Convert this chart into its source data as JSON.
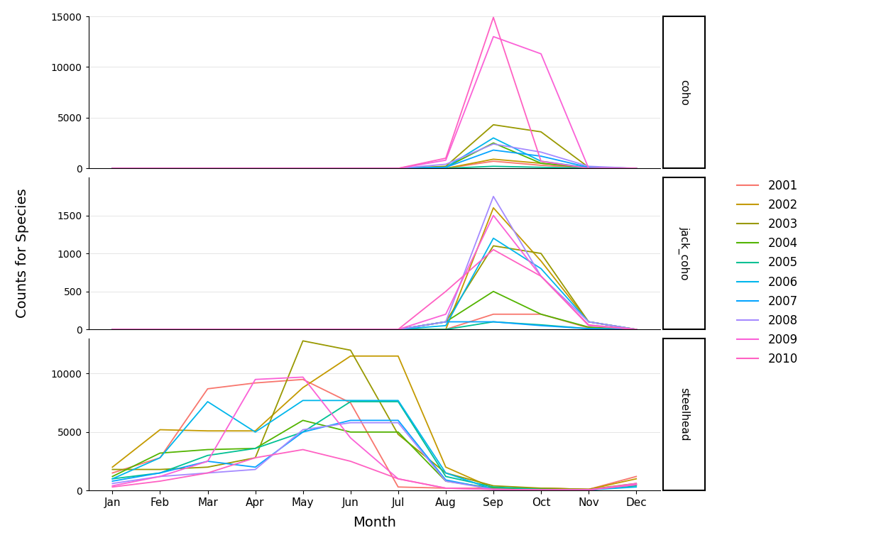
{
  "months": [
    "Jan",
    "Feb",
    "Mar",
    "Apr",
    "May",
    "Jun",
    "Jul",
    "Aug",
    "Sep",
    "Oct",
    "Nov",
    "Dec"
  ],
  "years": [
    "2001",
    "2002",
    "2003",
    "2004",
    "2005",
    "2006",
    "2007",
    "2008",
    "2009",
    "2010"
  ],
  "year_colors": {
    "2001": "#F8766D",
    "2002": "#C49A00",
    "2003": "#999900",
    "2004": "#53B400",
    "2005": "#00C094",
    "2006": "#00B6EB",
    "2007": "#06A4FF",
    "2008": "#A58AFF",
    "2009": "#FB61D7",
    "2010": "#FF61C3"
  },
  "coho": {
    "2001": [
      0,
      0,
      0,
      0,
      0,
      0,
      0,
      0,
      700,
      300,
      50,
      0
    ],
    "2002": [
      0,
      0,
      0,
      0,
      0,
      0,
      0,
      0,
      900,
      500,
      80,
      0
    ],
    "2003": [
      0,
      0,
      0,
      0,
      0,
      0,
      0,
      200,
      4300,
      3600,
      100,
      0
    ],
    "2004": [
      0,
      0,
      0,
      0,
      0,
      0,
      0,
      100,
      2500,
      500,
      50,
      0
    ],
    "2005": [
      0,
      0,
      0,
      0,
      0,
      0,
      0,
      0,
      200,
      100,
      20,
      0
    ],
    "2006": [
      0,
      0,
      0,
      0,
      0,
      0,
      0,
      100,
      3000,
      700,
      60,
      0
    ],
    "2007": [
      0,
      0,
      0,
      0,
      0,
      0,
      0,
      100,
      1800,
      1200,
      100,
      0
    ],
    "2008": [
      0,
      0,
      0,
      0,
      0,
      0,
      0,
      400,
      2400,
      1600,
      200,
      0
    ],
    "2009": [
      0,
      0,
      0,
      0,
      0,
      0,
      0,
      800,
      13000,
      11300,
      0,
      0
    ],
    "2010": [
      0,
      0,
      0,
      0,
      0,
      0,
      0,
      1000,
      14900,
      700,
      0,
      0
    ]
  },
  "jack_coho": {
    "2001": [
      0,
      0,
      0,
      0,
      0,
      0,
      0,
      0,
      200,
      200,
      20,
      0
    ],
    "2002": [
      0,
      0,
      0,
      0,
      0,
      0,
      0,
      0,
      1600,
      900,
      100,
      0
    ],
    "2003": [
      0,
      0,
      0,
      0,
      0,
      0,
      0,
      100,
      1100,
      1000,
      100,
      0
    ],
    "2004": [
      0,
      0,
      0,
      0,
      0,
      0,
      0,
      100,
      500,
      200,
      30,
      0
    ],
    "2005": [
      0,
      0,
      0,
      0,
      0,
      0,
      0,
      0,
      100,
      60,
      10,
      0
    ],
    "2006": [
      0,
      0,
      0,
      0,
      0,
      0,
      0,
      50,
      1200,
      800,
      100,
      0
    ],
    "2007": [
      0,
      0,
      0,
      0,
      0,
      0,
      0,
      100,
      100,
      50,
      10,
      0
    ],
    "2008": [
      0,
      0,
      0,
      0,
      0,
      0,
      0,
      100,
      1750,
      700,
      100,
      0
    ],
    "2009": [
      0,
      0,
      0,
      0,
      0,
      0,
      0,
      200,
      1500,
      700,
      50,
      0
    ],
    "2010": [
      0,
      0,
      0,
      0,
      0,
      0,
      0,
      500,
      1050,
      700,
      60,
      0
    ]
  },
  "steelhead": {
    "2001": [
      1500,
      2800,
      8700,
      9200,
      9500,
      7500,
      300,
      200,
      200,
      200,
      100,
      1200
    ],
    "2002": [
      2000,
      5200,
      5100,
      5100,
      8800,
      11500,
      11500,
      2000,
      200,
      200,
      100,
      1000
    ],
    "2003": [
      1800,
      1800,
      2000,
      2800,
      12800,
      12000,
      4800,
      1500,
      400,
      200,
      100,
      600
    ],
    "2004": [
      1200,
      3200,
      3500,
      3600,
      6000,
      5000,
      5000,
      800,
      200,
      100,
      50,
      500
    ],
    "2005": [
      1000,
      1500,
      3000,
      3600,
      5000,
      7600,
      7600,
      1200,
      300,
      100,
      50,
      400
    ],
    "2006": [
      1000,
      2800,
      7600,
      5000,
      7700,
      7700,
      7700,
      1500,
      100,
      50,
      50,
      300
    ],
    "2007": [
      800,
      1500,
      2500,
      2000,
      5000,
      6000,
      6000,
      900,
      100,
      50,
      50,
      500
    ],
    "2008": [
      600,
      1200,
      1500,
      1800,
      5200,
      5800,
      5800,
      800,
      100,
      50,
      50,
      500
    ],
    "2009": [
      400,
      1200,
      2500,
      9500,
      9700,
      4500,
      1000,
      200,
      100,
      50,
      50,
      600
    ],
    "2010": [
      300,
      800,
      1500,
      2800,
      3500,
      2500,
      1000,
      200,
      100,
      50,
      50,
      500
    ]
  },
  "species_order": [
    "coho",
    "jack_coho",
    "steelhead"
  ],
  "ylabel": "Counts for Species",
  "xlabel": "Month",
  "ylim_coho": [
    0,
    15000
  ],
  "ylim_jack_coho": [
    0,
    2000
  ],
  "ylim_steelhead": [
    0,
    13000
  ],
  "yticks_coho": [
    0,
    5000,
    10000,
    15000
  ],
  "yticks_jack_coho": [
    0,
    500,
    1000,
    1500
  ],
  "yticks_steelhead": [
    0,
    5000,
    10000
  ]
}
